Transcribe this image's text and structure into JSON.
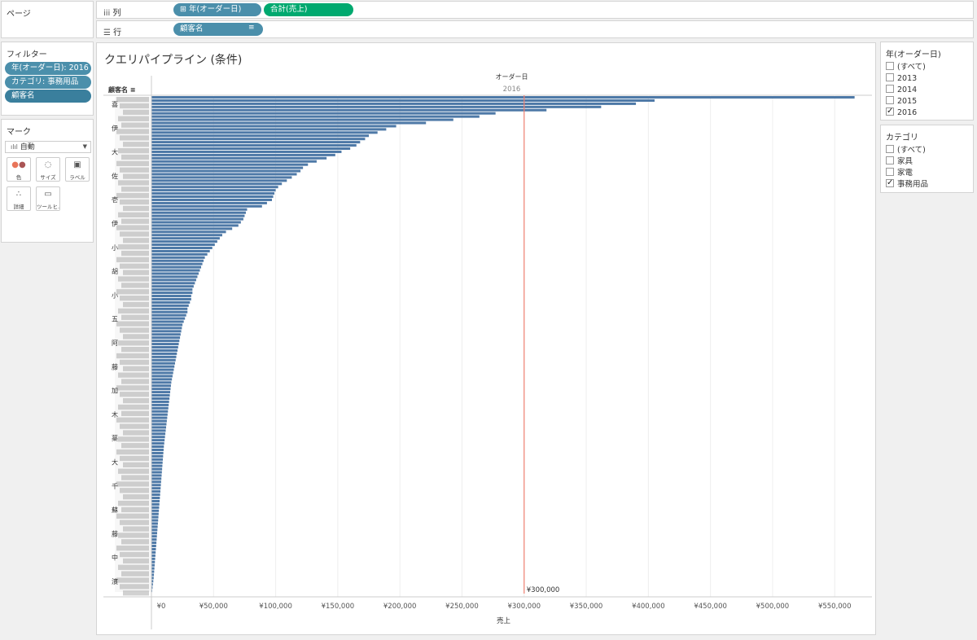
{
  "pages_card": {
    "title": "ページ"
  },
  "columns_shelf": {
    "label": "列",
    "pills": [
      "⊞ 年(オーダー日)",
      "合計(売上)"
    ]
  },
  "rows_shelf": {
    "label": "行",
    "pills": [
      "顧客名"
    ]
  },
  "filters_card": {
    "title": "フィルター",
    "pills": [
      "年(オーダー日): 2016",
      "カテゴリ: 事務用品",
      "顧客名"
    ]
  },
  "marks_card": {
    "title": "マーク",
    "type": "自動",
    "buttons": [
      "色",
      "サイズ",
      "ラベル",
      "詳細",
      "ツールヒ…"
    ]
  },
  "sheet": {
    "title": "クエリパイプライン (条件)"
  },
  "year_filter": {
    "title": "年(オーダー日)",
    "options": [
      {
        "label": "(すべて)",
        "checked": false
      },
      {
        "label": "2013",
        "checked": false
      },
      {
        "label": "2014",
        "checked": false
      },
      {
        "label": "2015",
        "checked": false
      },
      {
        "label": "2016",
        "checked": true
      }
    ]
  },
  "category_filter": {
    "title": "カテゴリ",
    "options": [
      {
        "label": "(すべて)",
        "checked": false
      },
      {
        "label": "家具",
        "checked": false
      },
      {
        "label": "家電",
        "checked": false
      },
      {
        "label": "事務用品",
        "checked": true
      }
    ]
  },
  "colors": {
    "bar": "#4e79a7",
    "reference_line": "#f08070",
    "pill_blue": "#4b8fab",
    "pill_green": "#00a96f"
  },
  "chart_data": {
    "type": "bar",
    "orientation": "horizontal",
    "column_header_title": "オーダー日",
    "column_header_value": "2016",
    "row_header": "顧客名",
    "xlabel": "売上",
    "xlim": [
      0,
      580000
    ],
    "x_ticks": [
      "¥0",
      "¥50,000",
      "¥100,000",
      "¥150,000",
      "¥200,000",
      "¥250,000",
      "¥300,000",
      "¥350,000",
      "¥400,000",
      "¥450,000",
      "¥500,000",
      "¥550,000"
    ],
    "x_tick_values": [
      0,
      50000,
      100000,
      150000,
      200000,
      250000,
      300000,
      350000,
      400000,
      450000,
      500000,
      550000
    ],
    "reference_line": {
      "value": 300000,
      "label": "¥300,000"
    },
    "visible_row_labels": [
      "喜",
      "伊",
      "大",
      "佐",
      "壱",
      "伊",
      "小",
      "胡",
      "小",
      "五",
      "阿",
      "藤",
      "加",
      "木",
      "薬",
      "大",
      "千",
      "蘇",
      "藤",
      "中",
      "濱"
    ],
    "values": [
      566000,
      405000,
      390000,
      362000,
      318000,
      277000,
      264000,
      243000,
      221000,
      197000,
      189000,
      182000,
      175000,
      172000,
      168000,
      165000,
      160000,
      153000,
      148000,
      141000,
      133000,
      126000,
      122000,
      120000,
      117000,
      113000,
      109000,
      105000,
      102000,
      100000,
      99000,
      98000,
      97000,
      93000,
      89000,
      77000,
      76000,
      75000,
      74000,
      72000,
      70000,
      65000,
      60000,
      57000,
      55000,
      53000,
      51000,
      49000,
      47000,
      45000,
      43000,
      42000,
      41000,
      40000,
      39000,
      38000,
      37000,
      36000,
      35000,
      34000,
      33000,
      33000,
      32000,
      32000,
      31000,
      30000,
      29000,
      29000,
      28000,
      27000,
      26000,
      25000,
      24500,
      24000,
      23500,
      23000,
      22500,
      22000,
      21500,
      21000,
      20500,
      20000,
      19500,
      19000,
      18500,
      18000,
      17500,
      17000,
      16500,
      16000,
      15700,
      15400,
      15100,
      14800,
      14500,
      14200,
      13900,
      13600,
      13300,
      13000,
      12700,
      12400,
      12100,
      11800,
      11500,
      11200,
      10900,
      10600,
      10300,
      10000,
      9800,
      9600,
      9400,
      9200,
      9000,
      8800,
      8600,
      8400,
      8200,
      8000,
      7800,
      7600,
      7400,
      7200,
      7000,
      6800,
      6600,
      6400,
      6200,
      6000,
      5800,
      5600,
      5400,
      5200,
      5000,
      4800,
      4600,
      4400,
      4200,
      4000,
      3800,
      3600,
      3400,
      3200,
      3000,
      2800,
      2600,
      2400,
      2200,
      2000,
      1800,
      1500,
      1200,
      900,
      600,
      300
    ]
  }
}
